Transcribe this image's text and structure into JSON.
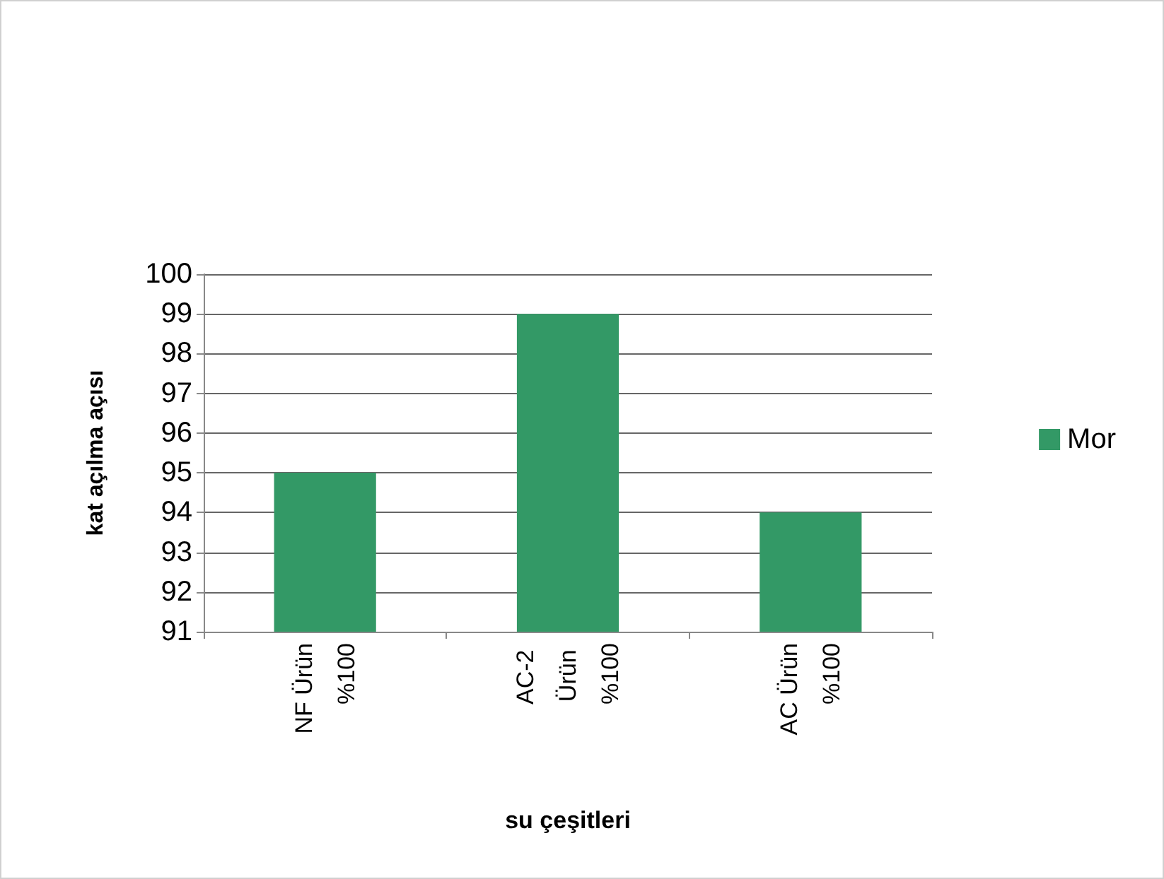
{
  "chart_data": {
    "type": "bar",
    "xlabel": "su çeşitleri",
    "ylabel": "kat açılma açısı",
    "categories": [
      "NF Ürün %100",
      "AC-2 Ürün %100",
      "AC Ürün %100"
    ],
    "series": [
      {
        "name": "Mor",
        "color": "#339966",
        "values": [
          95,
          99,
          94
        ]
      }
    ],
    "ylim": [
      91,
      100
    ],
    "yticks": [
      91,
      92,
      93,
      94,
      95,
      96,
      97,
      98,
      99,
      100
    ],
    "grid": "y",
    "legend": "right"
  }
}
